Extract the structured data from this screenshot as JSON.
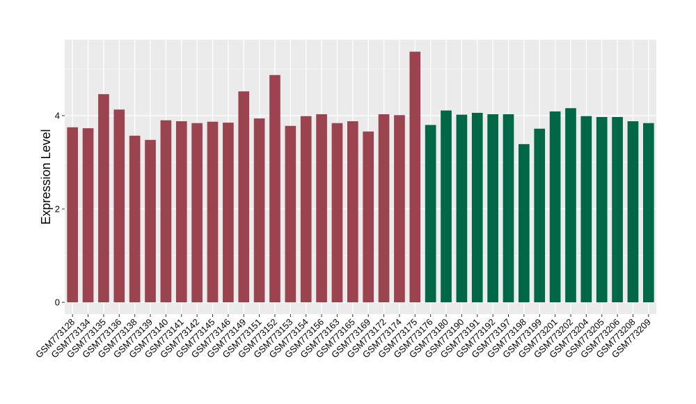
{
  "chart_data": {
    "type": "bar",
    "title": "",
    "xlabel": "",
    "ylabel": "Expression Level",
    "ylim": [
      0,
      5.6
    ],
    "yticks": [
      0,
      2,
      4
    ],
    "grid": true,
    "legend": "none",
    "colors": {
      "group_a": "#9c4350",
      "group_b": "#006846",
      "panel": "#ebebeb",
      "grid": "#ffffff"
    },
    "categories": [
      "GSM773128",
      "GSM773134",
      "GSM773135",
      "GSM773136",
      "GSM773138",
      "GSM773139",
      "GSM773140",
      "GSM773141",
      "GSM773142",
      "GSM773145",
      "GSM773146",
      "GSM773149",
      "GSM773151",
      "GSM773152",
      "GSM773153",
      "GSM773154",
      "GSM773156",
      "GSM773163",
      "GSM773165",
      "GSM773169",
      "GSM773172",
      "GSM773174",
      "GSM773175",
      "GSM773176",
      "GSM773180",
      "GSM773190",
      "GSM773191",
      "GSM773192",
      "GSM773197",
      "GSM773198",
      "GSM773199",
      "GSM773201",
      "GSM773202",
      "GSM773204",
      "GSM773205",
      "GSM773206",
      "GSM773208",
      "GSM773209"
    ],
    "values": [
      3.75,
      3.73,
      4.46,
      4.13,
      3.57,
      3.48,
      3.9,
      3.88,
      3.84,
      3.87,
      3.85,
      4.52,
      3.94,
      4.87,
      3.78,
      3.99,
      4.03,
      3.84,
      3.88,
      3.66,
      4.03,
      4.01,
      5.37,
      3.8,
      4.11,
      4.02,
      4.06,
      4.03,
      4.03,
      3.39,
      3.72,
      4.09,
      4.16,
      3.99,
      3.97,
      3.97,
      3.88,
      3.84
    ],
    "groups": [
      "a",
      "a",
      "a",
      "a",
      "a",
      "a",
      "a",
      "a",
      "a",
      "a",
      "a",
      "a",
      "a",
      "a",
      "a",
      "a",
      "a",
      "a",
      "a",
      "a",
      "a",
      "a",
      "a",
      "b",
      "b",
      "b",
      "b",
      "b",
      "b",
      "b",
      "b",
      "b",
      "b",
      "b",
      "b",
      "b",
      "b",
      "b"
    ]
  }
}
